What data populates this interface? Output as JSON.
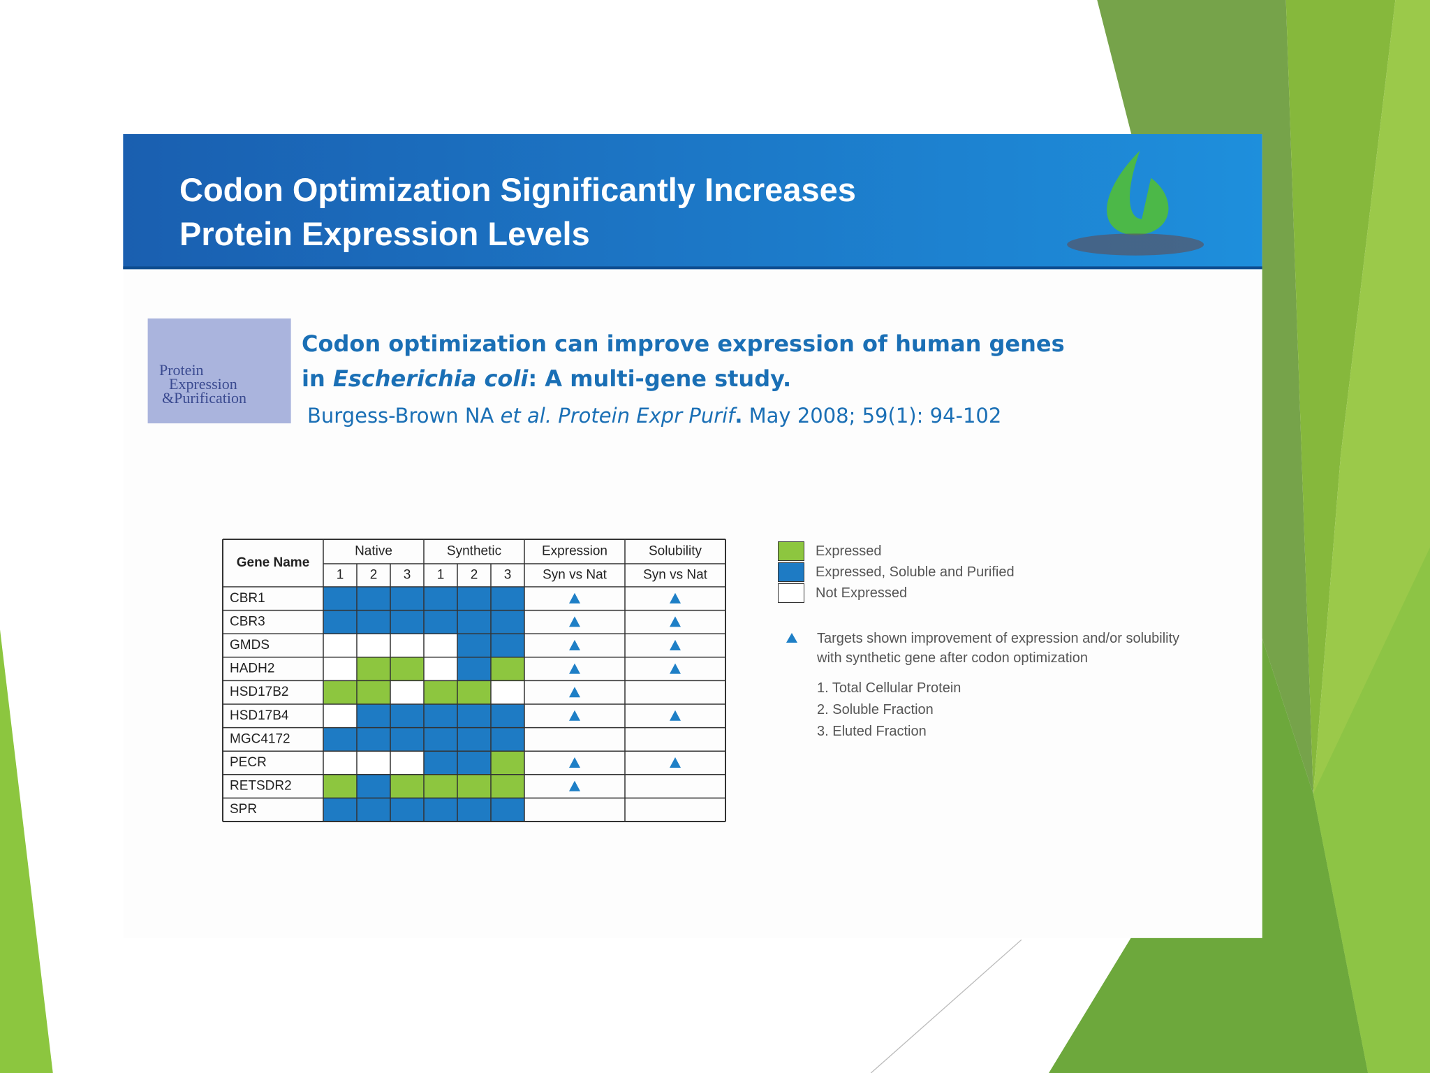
{
  "header": {
    "title_lines": [
      "Codon Optimization Significantly Increases",
      "Protein Expression Levels"
    ]
  },
  "cover": {
    "lines": [
      "Protein",
      "Expression",
      "&Purification"
    ]
  },
  "paper": {
    "title_lines": [
      [
        {
          "text": "Codon optimization can improve expression of human genes"
        }
      ],
      [
        {
          "text": "in "
        },
        {
          "text": "Escherichia coli",
          "italic": true
        },
        {
          "text": ": A multi-gene study."
        }
      ]
    ],
    "citation": [
      {
        "text": "Burgess-Brown NA "
      },
      {
        "text": "et al. Protein Expr Purif",
        "italic": true
      },
      {
        "text": ".",
        "bold": true
      },
      {
        "text": " May 2008; 59(1): 94-102"
      }
    ]
  },
  "table": {
    "columns": {
      "gene": "Gene Name",
      "groups": [
        "Native",
        "Synthetic",
        "Expression",
        "Solubility"
      ],
      "sub": [
        "1",
        "2",
        "3",
        "1",
        "2",
        "3",
        "Syn vs Nat",
        "Syn vs Nat"
      ]
    },
    "rows": [
      {
        "gene": "CBR1",
        "cells": [
          "B",
          "B",
          "B",
          "B",
          "B",
          "B"
        ],
        "expression": true,
        "solubility": true
      },
      {
        "gene": "CBR3",
        "cells": [
          "B",
          "B",
          "B",
          "B",
          "B",
          "B"
        ],
        "expression": true,
        "solubility": true
      },
      {
        "gene": "GMDS",
        "cells": [
          "W",
          "W",
          "W",
          "W",
          "B",
          "B"
        ],
        "expression": true,
        "solubility": true
      },
      {
        "gene": "HADH2",
        "cells": [
          "W",
          "G",
          "G",
          "W",
          "B",
          "G"
        ],
        "expression": true,
        "solubility": true
      },
      {
        "gene": "HSD17B2",
        "cells": [
          "G",
          "G",
          "W",
          "G",
          "G",
          "W"
        ],
        "expression": true,
        "solubility": false
      },
      {
        "gene": "HSD17B4",
        "cells": [
          "W",
          "B",
          "B",
          "B",
          "B",
          "B"
        ],
        "expression": true,
        "solubility": true
      },
      {
        "gene": "MGC4172",
        "cells": [
          "B",
          "B",
          "B",
          "B",
          "B",
          "B"
        ],
        "expression": false,
        "solubility": false
      },
      {
        "gene": "PECR",
        "cells": [
          "W",
          "W",
          "W",
          "B",
          "B",
          "G"
        ],
        "expression": true,
        "solubility": true
      },
      {
        "gene": "RETSDR2",
        "cells": [
          "G",
          "B",
          "G",
          "G",
          "G",
          "G"
        ],
        "expression": true,
        "solubility": false
      },
      {
        "gene": "SPR",
        "cells": [
          "B",
          "B",
          "B",
          "B",
          "B",
          "B"
        ],
        "expression": false,
        "solubility": false
      }
    ]
  },
  "legend": {
    "items": [
      {
        "label": "Expressed",
        "code": "G",
        "color": "#8dc63f"
      },
      {
        "label": "Expressed, Soluble and Purified",
        "code": "B",
        "color": "#1e7bc4"
      },
      {
        "label": "Not Expressed",
        "code": "W",
        "color": "#ffffff"
      }
    ],
    "marker_color": "#1e7fc6",
    "note": "Targets shown improvement of expression and/or solubility with synthetic gene after codon optimization",
    "steps": [
      "1. Total Cellular Protein",
      "2. Soluble Fraction",
      "3. Eluted Fraction"
    ]
  }
}
